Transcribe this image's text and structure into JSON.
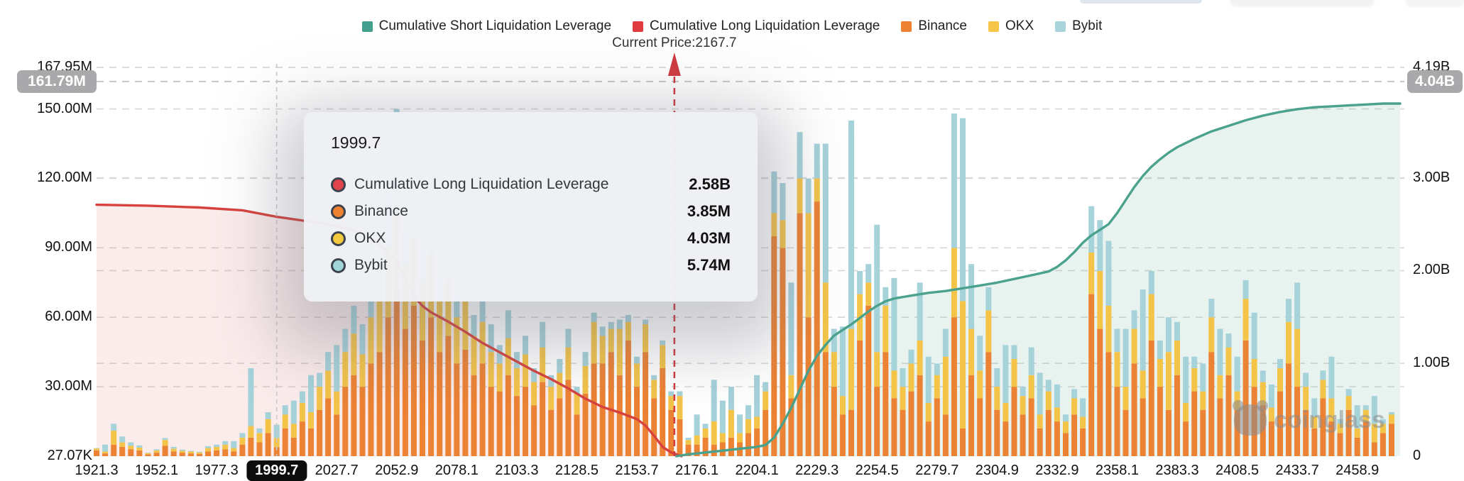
{
  "annotations": {
    "current_price_label": "Current Price:2167.7",
    "current_price": 2167.7
  },
  "legend": {
    "items": [
      {
        "name": "cumulative-short-liquidation-leverage",
        "label": "Cumulative Short Liquidation Leverage",
        "color": "#43A08E"
      },
      {
        "name": "cumulative-long-liquidation-leverage",
        "label": "Cumulative Long Liquidation Leverage",
        "color": "#E03C3F"
      },
      {
        "name": "binance",
        "label": "Binance",
        "color": "#EE8233"
      },
      {
        "name": "okx",
        "label": "OKX",
        "color": "#F5C64A"
      },
      {
        "name": "bybit",
        "label": "Bybit",
        "color": "#A9D4DB"
      }
    ]
  },
  "tooltip": {
    "title": "1999.7",
    "rows": [
      {
        "label": "Cumulative Long Liquidation Leverage",
        "value": "2.58B",
        "color": "#E0444A"
      },
      {
        "label": "Binance",
        "value": "3.85M",
        "color": "#EE8233"
      },
      {
        "label": "OKX",
        "value": "4.03M",
        "color": "#F3C93F"
      },
      {
        "label": "Bybit",
        "value": "5.74M",
        "color": "#9FD4D9"
      }
    ]
  },
  "axes": {
    "left": {
      "max": 167.95,
      "ticks": [
        {
          "label": "167.95M",
          "value": 167.95
        },
        {
          "label": "150.00M",
          "value": 150
        },
        {
          "label": "120.00M",
          "value": 120
        },
        {
          "label": "90.00M",
          "value": 90
        },
        {
          "label": "60.00M",
          "value": 60
        },
        {
          "label": "30.00M",
          "value": 30
        },
        {
          "label": "27.07K",
          "value": 0.027
        }
      ],
      "badge": {
        "label": "161.79M",
        "value": 161.79
      }
    },
    "right": {
      "max": 4.19,
      "ticks": [
        {
          "label": "4.19B",
          "value": 4.19
        },
        {
          "label": "3.00B",
          "value": 3
        },
        {
          "label": "2.00B",
          "value": 2
        },
        {
          "label": "1.00B",
          "value": 1
        },
        {
          "label": "0",
          "value": 0
        }
      ],
      "badge": {
        "label": "4.04B",
        "value": 4.04
      }
    },
    "x": {
      "bars_per_label": 7,
      "highlight": "1999.7",
      "labels": [
        {
          "label": "1921.3",
          "value": 1921.3
        },
        {
          "label": "1952.1",
          "value": 1952.1
        },
        {
          "label": "1977.3",
          "value": 1977.3
        },
        {
          "label": "1999.7",
          "value": 1999.7
        },
        {
          "label": "2027.7",
          "value": 2027.7
        },
        {
          "label": "2052.9",
          "value": 2052.9
        },
        {
          "label": "2078.1",
          "value": 2078.1
        },
        {
          "label": "2103.3",
          "value": 2103.3
        },
        {
          "label": "2128.5",
          "value": 2128.5
        },
        {
          "label": "2153.7",
          "value": 2153.7
        },
        {
          "label": "2176.1",
          "value": 2176.1
        },
        {
          "label": "2204.1",
          "value": 2204.1
        },
        {
          "label": "2229.3",
          "value": 2229.3
        },
        {
          "label": "2254.5",
          "value": 2254.5
        },
        {
          "label": "2279.7",
          "value": 2279.7
        },
        {
          "label": "2304.9",
          "value": 2304.9
        },
        {
          "label": "2332.9",
          "value": 2332.9
        },
        {
          "label": "2358.1",
          "value": 2358.1
        },
        {
          "label": "2383.3",
          "value": 2383.3
        },
        {
          "label": "2408.5",
          "value": 2408.5
        },
        {
          "label": "2433.7",
          "value": 2433.7
        },
        {
          "label": "2458.9",
          "value": 2458.9
        }
      ]
    }
  },
  "chart_data": {
    "type": "mixed",
    "bar_units": "M",
    "line_units": "B",
    "crosshair_index": 21,
    "grid_color": "#d8d8d8",
    "bar_series": [
      {
        "name": "Binance",
        "color": "#EC8233"
      },
      {
        "name": "OKX",
        "color": "#F4C449"
      },
      {
        "name": "Bybit",
        "color": "#A6D2DA"
      }
    ],
    "bars": [
      [
        2.5,
        0.8,
        0.2
      ],
      [
        1.2,
        0.8,
        3
      ],
      [
        5,
        6,
        3
      ],
      [
        4,
        2,
        2.5
      ],
      [
        3,
        1.5,
        1.5
      ],
      [
        2.5,
        1.2,
        1
      ],
      [
        0.8,
        0.5,
        0.2
      ],
      [
        1.5,
        1,
        0.5
      ],
      [
        4.5,
        2.5,
        0.8
      ],
      [
        2,
        1.2,
        0.8
      ],
      [
        1.5,
        0.8,
        0.5
      ],
      [
        1.2,
        0.8,
        0.3
      ],
      [
        1,
        0.6,
        0.3
      ],
      [
        2,
        1.5,
        0.8
      ],
      [
        2.5,
        1.5,
        1
      ],
      [
        3,
        2,
        1.5
      ],
      [
        2,
        1.5,
        3
      ],
      [
        5,
        3,
        2
      ],
      [
        8,
        5,
        25
      ],
      [
        6,
        4,
        2
      ],
      [
        10,
        6,
        3
      ],
      [
        3.85,
        4.03,
        5.74
      ],
      [
        12,
        6,
        4
      ],
      [
        8,
        6,
        10
      ],
      [
        15,
        8,
        5
      ],
      [
        12,
        7,
        16
      ],
      [
        20,
        10,
        6
      ],
      [
        25,
        12,
        8
      ],
      [
        18,
        10,
        20
      ],
      [
        30,
        15,
        10
      ],
      [
        35,
        18,
        12
      ],
      [
        30,
        14,
        13
      ],
      [
        40,
        20,
        12
      ],
      [
        45,
        22,
        20
      ],
      [
        60,
        30,
        25
      ],
      [
        72,
        36,
        42
      ],
      [
        55,
        28,
        15
      ],
      [
        65,
        30,
        18
      ],
      [
        50,
        25,
        15
      ],
      [
        60,
        28,
        14
      ],
      [
        45,
        22,
        12
      ],
      [
        52,
        24,
        12
      ],
      [
        40,
        20,
        10
      ],
      [
        46,
        21,
        11
      ],
      [
        35,
        17,
        9
      ],
      [
        40,
        18,
        10
      ],
      [
        30,
        15,
        12
      ],
      [
        28,
        12,
        8
      ],
      [
        35,
        16,
        12
      ],
      [
        26,
        12,
        7
      ],
      [
        30,
        14,
        8
      ],
      [
        22,
        10,
        6
      ],
      [
        32,
        15,
        11
      ],
      [
        20,
        10,
        5
      ],
      [
        25,
        11,
        6
      ],
      [
        33,
        14,
        8
      ],
      [
        18,
        9,
        3
      ],
      [
        27,
        12,
        6
      ],
      [
        40,
        18,
        4
      ],
      [
        40,
        12,
        4
      ],
      [
        45,
        10,
        3
      ],
      [
        35,
        20,
        4
      ],
      [
        50,
        8,
        3
      ],
      [
        30,
        10,
        3
      ],
      [
        45,
        12,
        2
      ],
      [
        25,
        8,
        2
      ],
      [
        38,
        10,
        2
      ],
      [
        20,
        6,
        2
      ],
      [
        16,
        10,
        2
      ],
      [
        5,
        2,
        1
      ],
      [
        5,
        4,
        9
      ],
      [
        8,
        4,
        2
      ],
      [
        5,
        10,
        18
      ],
      [
        6,
        4,
        14
      ],
      [
        8,
        12,
        10
      ],
      [
        6,
        4,
        8
      ],
      [
        10,
        6,
        6
      ],
      [
        12,
        5,
        18
      ],
      [
        20,
        8,
        4
      ],
      [
        95,
        10,
        18
      ],
      [
        90,
        12,
        16
      ],
      [
        25,
        10,
        40
      ],
      [
        105,
        15,
        20
      ],
      [
        60,
        45,
        15
      ],
      [
        110,
        10,
        15
      ],
      [
        45,
        30,
        60
      ],
      [
        30,
        15,
        10
      ],
      [
        18,
        8,
        30
      ],
      [
        20,
        35,
        90
      ],
      [
        50,
        20,
        10
      ],
      [
        65,
        10,
        8
      ],
      [
        30,
        15,
        55
      ],
      [
        45,
        20,
        8
      ],
      [
        25,
        12,
        40
      ],
      [
        20,
        10,
        8
      ],
      [
        28,
        12,
        6
      ],
      [
        35,
        15,
        25
      ],
      [
        15,
        8,
        20
      ],
      [
        25,
        10,
        5
      ],
      [
        18,
        25,
        12
      ],
      [
        60,
        30,
        58
      ],
      [
        12,
        55,
        79
      ],
      [
        35,
        20,
        28
      ],
      [
        25,
        12,
        15
      ],
      [
        45,
        18,
        10
      ],
      [
        20,
        10,
        8
      ],
      [
        15,
        8,
        25
      ],
      [
        30,
        12,
        6
      ],
      [
        18,
        8,
        4
      ],
      [
        25,
        10,
        12
      ],
      [
        12,
        6,
        18
      ],
      [
        20,
        8,
        5
      ],
      [
        15,
        6,
        10
      ],
      [
        10,
        5,
        3
      ],
      [
        18,
        7,
        4
      ],
      [
        12,
        5,
        8
      ],
      [
        70,
        18,
        20
      ],
      [
        55,
        25,
        22
      ],
      [
        45,
        20,
        28
      ],
      [
        30,
        15,
        10
      ],
      [
        20,
        10,
        25
      ],
      [
        40,
        15,
        8
      ],
      [
        25,
        12,
        35
      ],
      [
        50,
        20,
        10
      ],
      [
        30,
        12,
        8
      ],
      [
        20,
        25,
        15
      ],
      [
        35,
        15,
        8
      ],
      [
        15,
        8,
        20
      ],
      [
        28,
        10,
        5
      ],
      [
        20,
        8,
        12
      ],
      [
        45,
        15,
        8
      ],
      [
        25,
        10,
        20
      ],
      [
        35,
        12,
        6
      ],
      [
        20,
        8,
        15
      ],
      [
        50,
        18,
        8
      ],
      [
        30,
        12,
        20
      ],
      [
        22,
        10,
        5
      ],
      [
        15,
        6,
        10
      ],
      [
        28,
        10,
        4
      ],
      [
        40,
        18,
        10
      ],
      [
        30,
        25,
        20
      ],
      [
        20,
        10,
        6
      ],
      [
        12,
        5,
        8
      ],
      [
        25,
        8,
        4
      ],
      [
        15,
        10,
        18
      ],
      [
        10,
        4,
        2
      ],
      [
        20,
        6,
        3
      ],
      [
        8,
        4,
        10
      ],
      [
        15,
        5,
        2
      ],
      [
        6,
        8,
        12
      ],
      [
        10,
        4,
        2
      ],
      [
        14,
        4,
        1
      ]
    ],
    "lines": [
      {
        "name": "Cumulative Long Liquidation Leverage",
        "axis": "right",
        "color": "#D7413E",
        "fill": "rgba(219,68,64,0.10)",
        "points": [
          [
            0,
            2.71
          ],
          [
            6,
            2.7
          ],
          [
            12,
            2.68
          ],
          [
            17,
            2.65
          ],
          [
            21,
            2.58
          ],
          [
            24,
            2.54
          ],
          [
            27,
            2.5
          ],
          [
            29,
            2.46
          ],
          [
            31,
            2.4
          ],
          [
            33,
            2.28
          ],
          [
            35,
            2.1
          ],
          [
            36,
            1.92
          ],
          [
            37,
            1.72
          ],
          [
            38,
            1.62
          ],
          [
            39,
            1.55
          ],
          [
            41,
            1.45
          ],
          [
            43,
            1.34
          ],
          [
            45,
            1.22
          ],
          [
            47,
            1.12
          ],
          [
            49,
            1.02
          ],
          [
            51,
            0.92
          ],
          [
            53,
            0.83
          ],
          [
            55,
            0.73
          ],
          [
            57,
            0.62
          ],
          [
            59,
            0.53
          ],
          [
            61,
            0.47
          ],
          [
            63,
            0.4
          ],
          [
            64,
            0.33
          ],
          [
            65,
            0.22
          ],
          [
            66,
            0.1
          ],
          [
            67,
            0.04
          ],
          [
            68.2,
            0.0
          ]
        ]
      },
      {
        "name": "Cumulative Short Liquidation Leverage",
        "axis": "right",
        "color": "#4AA28C",
        "fill": "rgba(74,162,140,0.13)",
        "points": [
          [
            67.6,
            0.0
          ],
          [
            69,
            0.02
          ],
          [
            71,
            0.04
          ],
          [
            73,
            0.06
          ],
          [
            75,
            0.08
          ],
          [
            77,
            0.1
          ],
          [
            78,
            0.12
          ],
          [
            79,
            0.2
          ],
          [
            80,
            0.35
          ],
          [
            81,
            0.52
          ],
          [
            82,
            0.72
          ],
          [
            83,
            0.92
          ],
          [
            84,
            1.08
          ],
          [
            85,
            1.2
          ],
          [
            86,
            1.3
          ],
          [
            87,
            1.36
          ],
          [
            88,
            1.42
          ],
          [
            89,
            1.49
          ],
          [
            90,
            1.56
          ],
          [
            91,
            1.62
          ],
          [
            92,
            1.67
          ],
          [
            93,
            1.7
          ],
          [
            95,
            1.73
          ],
          [
            97,
            1.76
          ],
          [
            99,
            1.78
          ],
          [
            101,
            1.81
          ],
          [
            103,
            1.84
          ],
          [
            105,
            1.87
          ],
          [
            107,
            1.91
          ],
          [
            109,
            1.95
          ],
          [
            111,
            1.99
          ],
          [
            112,
            2.04
          ],
          [
            113,
            2.11
          ],
          [
            114,
            2.2
          ],
          [
            115,
            2.3
          ],
          [
            116,
            2.38
          ],
          [
            117,
            2.44
          ],
          [
            118,
            2.5
          ],
          [
            119,
            2.62
          ],
          [
            120,
            2.76
          ],
          [
            121,
            2.9
          ],
          [
            122,
            3.02
          ],
          [
            123,
            3.12
          ],
          [
            124,
            3.2
          ],
          [
            125,
            3.27
          ],
          [
            126,
            3.33
          ],
          [
            128,
            3.42
          ],
          [
            130,
            3.5
          ],
          [
            132,
            3.56
          ],
          [
            134,
            3.62
          ],
          [
            136,
            3.67
          ],
          [
            138,
            3.71
          ],
          [
            140,
            3.74
          ],
          [
            142,
            3.76
          ],
          [
            144,
            3.77
          ],
          [
            146,
            3.78
          ],
          [
            148,
            3.79
          ],
          [
            150,
            3.8
          ],
          [
            152,
            3.8
          ]
        ]
      }
    ]
  },
  "watermark": {
    "text": "coinglass"
  }
}
